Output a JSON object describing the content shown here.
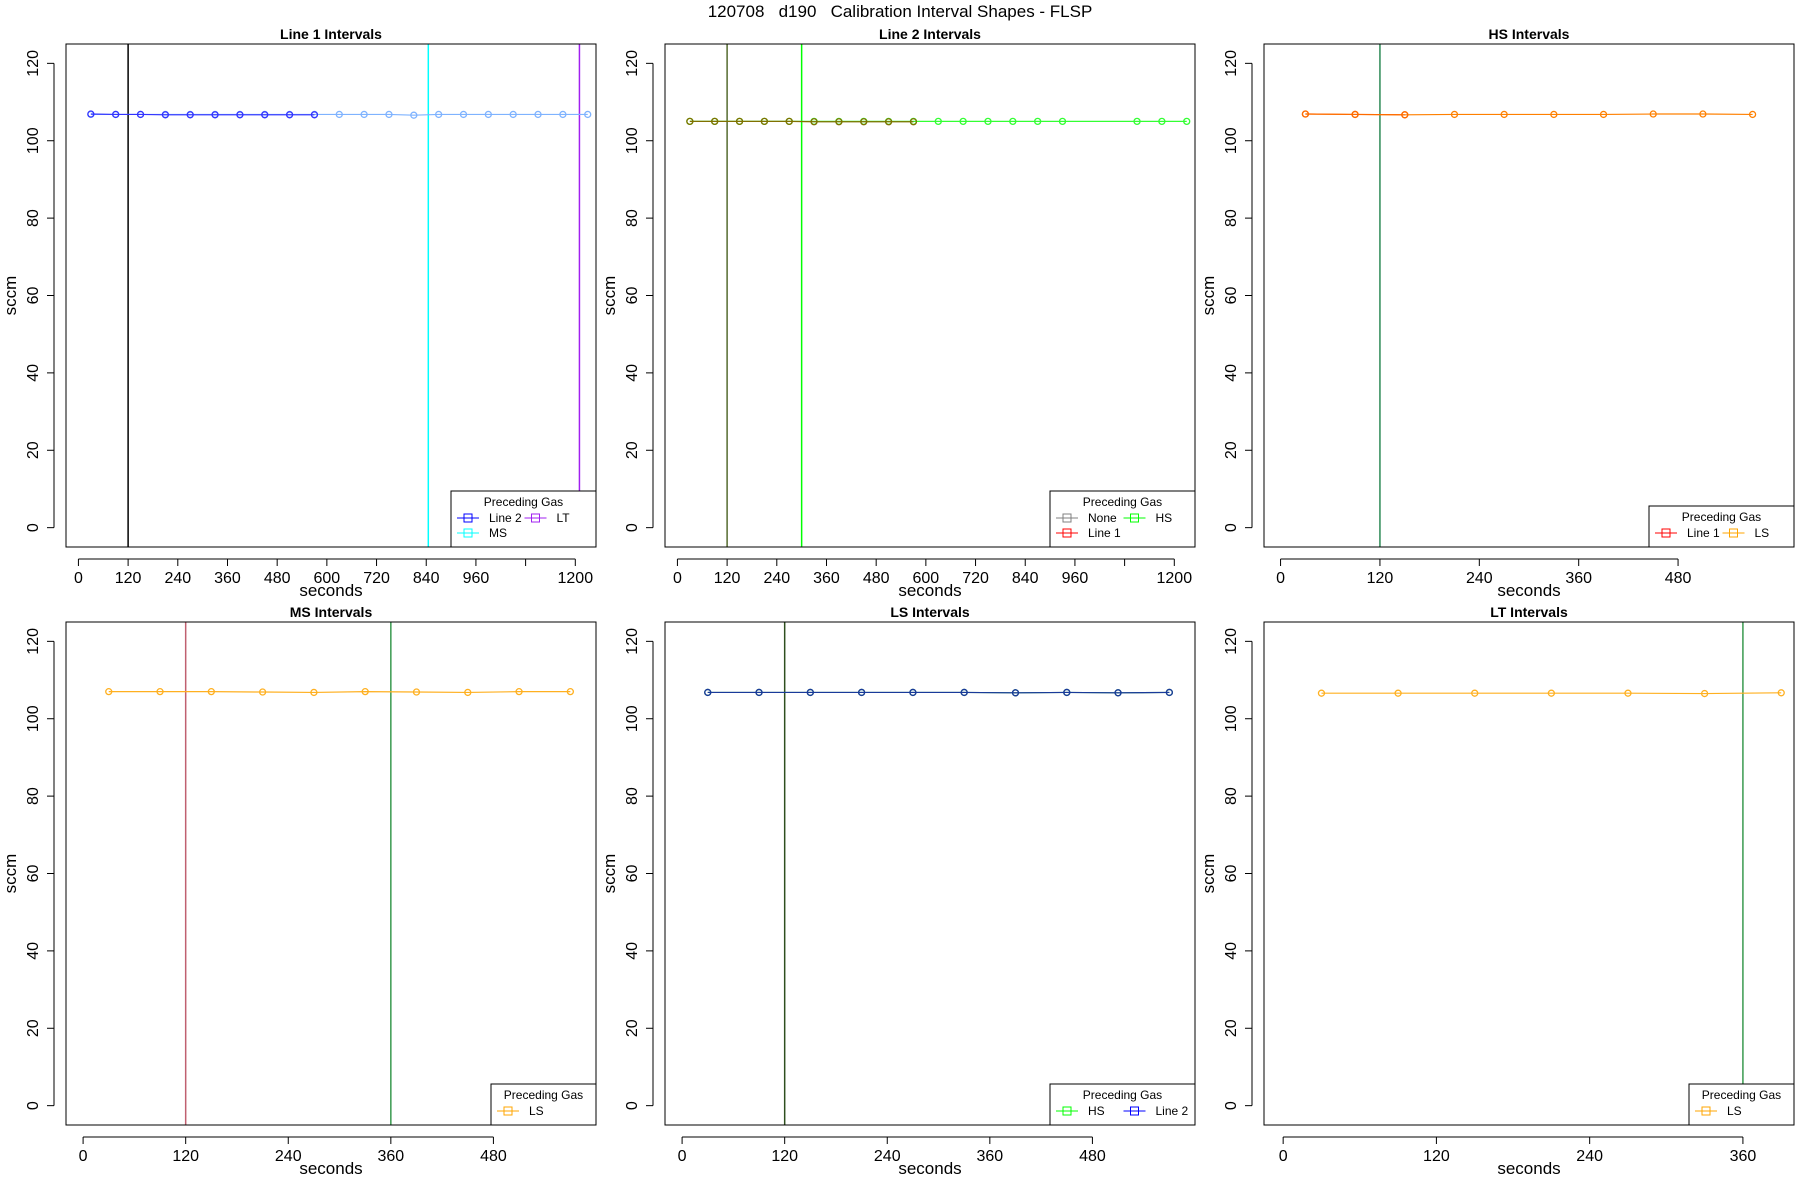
{
  "figure": {
    "title": "120708   d190   Calibration Interval Shapes - FLSP"
  },
  "colors": {
    "Line 1": "#ff0000",
    "Line 2": "#0000ff",
    "HS": "#00ff00",
    "MS": "#00ffff",
    "LS": "#ffa500",
    "LT": "#a020f0",
    "None": "#808080"
  },
  "chart_data": [
    {
      "type": "line",
      "title": "Line 1 Intervals",
      "xlabel": "seconds",
      "ylabel": "sccm",
      "xlim": [
        -30,
        1250
      ],
      "ylim": [
        -5,
        125
      ],
      "xticks": [
        0,
        120,
        240,
        360,
        480,
        600,
        720,
        840,
        960,
        1080,
        1200
      ],
      "xtick_labels": [
        "0",
        "120",
        "240",
        "360",
        "480",
        "600",
        "720",
        "840",
        "960",
        "",
        "1200"
      ],
      "yticks": [
        0,
        20,
        40,
        60,
        80,
        100,
        120
      ],
      "legend": {
        "title": "Preceding Gas",
        "position": "bottom-right",
        "columns": 2,
        "entries": [
          "Line 2",
          "LT",
          "MS"
        ]
      },
      "vlines": [
        {
          "x": 120,
          "color": "#000000"
        },
        {
          "x": 845,
          "color": "#00ffff"
        },
        {
          "x": 1210,
          "color": "#a020f0"
        }
      ],
      "series": [
        {
          "name": "MS",
          "color": "#7fb3ff",
          "x": [
            30,
            90,
            150,
            210,
            270,
            330,
            390,
            450,
            510,
            570,
            630,
            690,
            750,
            810,
            870,
            930,
            990,
            1050,
            1110,
            1170,
            1230
          ],
          "y": [
            106.8,
            106.8,
            106.8,
            106.8,
            106.8,
            106.8,
            106.8,
            106.8,
            106.8,
            106.8,
            106.8,
            106.8,
            106.8,
            106.6,
            106.8,
            106.8,
            106.8,
            106.8,
            106.8,
            106.8,
            106.8
          ]
        },
        {
          "name": "Line 2",
          "color": "#3333ff",
          "x": [
            30,
            90,
            150,
            210,
            270,
            330,
            390,
            450,
            510,
            570
          ],
          "y": [
            106.9,
            106.8,
            106.8,
            106.7,
            106.7,
            106.7,
            106.7,
            106.7,
            106.7,
            106.7
          ]
        }
      ]
    },
    {
      "type": "line",
      "title": "Line 2 Intervals",
      "xlabel": "seconds",
      "ylabel": "sccm",
      "xlim": [
        -30,
        1250
      ],
      "ylim": [
        -5,
        125
      ],
      "xticks": [
        0,
        120,
        240,
        360,
        480,
        600,
        720,
        840,
        960,
        1080,
        1200
      ],
      "xtick_labels": [
        "0",
        "120",
        "240",
        "360",
        "480",
        "600",
        "720",
        "840",
        "960",
        "",
        "1200"
      ],
      "yticks": [
        0,
        20,
        40,
        60,
        80,
        100,
        120
      ],
      "legend": {
        "title": "Preceding Gas",
        "position": "bottom-right",
        "columns": 2,
        "entries": [
          "None",
          "HS",
          "Line 1"
        ]
      },
      "vlines": [
        {
          "x": 120,
          "color": "#556b2f"
        },
        {
          "x": 300,
          "color": "#00ff00"
        }
      ],
      "series": [
        {
          "name": "HS",
          "color": "#33ff33",
          "x": [
            30,
            90,
            150,
            210,
            270,
            330,
            390,
            450,
            510,
            570,
            630,
            690,
            750,
            810,
            870,
            930,
            1110,
            1170,
            1230
          ],
          "y": [
            105,
            105,
            105,
            105,
            105,
            105,
            105,
            105,
            105,
            105,
            105,
            105,
            105,
            105,
            105,
            105,
            105,
            105,
            105
          ]
        },
        {
          "name": "Line 1",
          "color": "#807000",
          "x": [
            30,
            90,
            150,
            210,
            270,
            330,
            390,
            450,
            510,
            570
          ],
          "y": [
            105,
            105,
            105,
            105,
            105,
            104.9,
            104.9,
            104.9,
            104.9,
            104.9
          ]
        }
      ]
    },
    {
      "type": "line",
      "title": "HS Intervals",
      "xlabel": "seconds",
      "ylabel": "sccm",
      "xlim": [
        -20,
        620
      ],
      "ylim": [
        -5,
        125
      ],
      "xticks": [
        0,
        120,
        240,
        360,
        480
      ],
      "xtick_labels": [
        "0",
        "120",
        "240",
        "360",
        "480"
      ],
      "yticks": [
        0,
        20,
        40,
        60,
        80,
        100,
        120
      ],
      "legend": {
        "title": "Preceding Gas",
        "position": "bottom-right",
        "columns": 2,
        "entries": [
          "Line 1",
          "LS"
        ]
      },
      "vlines": [
        {
          "x": 120,
          "color": "#2e8b57"
        }
      ],
      "series": [
        {
          "name": "LS",
          "color": "#ff8000",
          "x": [
            30,
            90,
            150,
            210,
            270,
            330,
            390,
            450,
            510,
            570
          ],
          "y": [
            106.9,
            106.8,
            106.7,
            106.8,
            106.8,
            106.8,
            106.8,
            106.9,
            106.9,
            106.8
          ]
        },
        {
          "name": "Line 1",
          "color": "#ff6a00",
          "x": [
            30,
            90,
            150
          ],
          "y": [
            106.9,
            106.8,
            106.7
          ]
        }
      ]
    },
    {
      "type": "line",
      "title": "MS Intervals",
      "xlabel": "seconds",
      "ylabel": "sccm",
      "xlim": [
        -20,
        600
      ],
      "ylim": [
        -5,
        125
      ],
      "xticks": [
        0,
        120,
        240,
        360,
        480
      ],
      "xtick_labels": [
        "0",
        "120",
        "240",
        "360",
        "480"
      ],
      "yticks": [
        0,
        20,
        40,
        60,
        80,
        100,
        120
      ],
      "legend": {
        "title": "Preceding Gas",
        "position": "bottom-right",
        "columns": 1,
        "entries": [
          "LS"
        ]
      },
      "vlines": [
        {
          "x": 120,
          "color": "#c06070"
        },
        {
          "x": 360,
          "color": "#3a9a50"
        }
      ],
      "series": [
        {
          "name": "LS",
          "color": "#ffb020",
          "x": [
            30,
            90,
            150,
            210,
            270,
            330,
            390,
            450,
            510,
            570
          ],
          "y": [
            107,
            107,
            107,
            106.9,
            106.8,
            107,
            106.9,
            106.8,
            107,
            107
          ]
        }
      ]
    },
    {
      "type": "line",
      "title": "LS Intervals",
      "xlabel": "seconds",
      "ylabel": "sccm",
      "xlim": [
        -20,
        600
      ],
      "ylim": [
        -5,
        125
      ],
      "xticks": [
        0,
        120,
        240,
        360,
        480
      ],
      "xtick_labels": [
        "0",
        "120",
        "240",
        "360",
        "480"
      ],
      "yticks": [
        0,
        20,
        40,
        60,
        80,
        100,
        120
      ],
      "legend": {
        "title": "Preceding Gas",
        "position": "bottom-right",
        "columns": 2,
        "entries": [
          "HS",
          "Line 2"
        ]
      },
      "vlines": [
        {
          "x": 120,
          "color": "#2f4f1f"
        }
      ],
      "series": [
        {
          "name": "HS",
          "color": "#1a8a50",
          "x": [
            30,
            90,
            150,
            210,
            270,
            330,
            390,
            450,
            510,
            570
          ],
          "y": [
            106.8,
            106.8,
            106.8,
            106.8,
            106.8,
            106.8,
            106.7,
            106.8,
            106.7,
            106.8
          ]
        },
        {
          "name": "Line 2",
          "color": "#1a3a9a",
          "x": [
            30,
            90,
            150,
            210,
            270,
            330,
            390,
            450,
            510,
            570
          ],
          "y": [
            106.8,
            106.8,
            106.8,
            106.8,
            106.8,
            106.8,
            106.7,
            106.8,
            106.7,
            106.8
          ]
        }
      ]
    },
    {
      "type": "line",
      "title": "LT Intervals",
      "xlabel": "seconds",
      "ylabel": "sccm",
      "xlim": [
        -15,
        400
      ],
      "ylim": [
        -5,
        125
      ],
      "xticks": [
        0,
        120,
        240,
        360
      ],
      "xtick_labels": [
        "0",
        "120",
        "240",
        "360"
      ],
      "yticks": [
        0,
        20,
        40,
        60,
        80,
        100,
        120
      ],
      "legend": {
        "title": "Preceding Gas",
        "position": "bottom-right",
        "columns": 1,
        "entries": [
          "LS"
        ]
      },
      "vlines": [
        {
          "x": 360,
          "color": "#3a9a50"
        }
      ],
      "series": [
        {
          "name": "LS",
          "color": "#ffb020",
          "x": [
            30,
            90,
            150,
            210,
            270,
            330,
            390
          ],
          "y": [
            106.6,
            106.6,
            106.6,
            106.6,
            106.6,
            106.5,
            106.7
          ]
        }
      ]
    }
  ]
}
